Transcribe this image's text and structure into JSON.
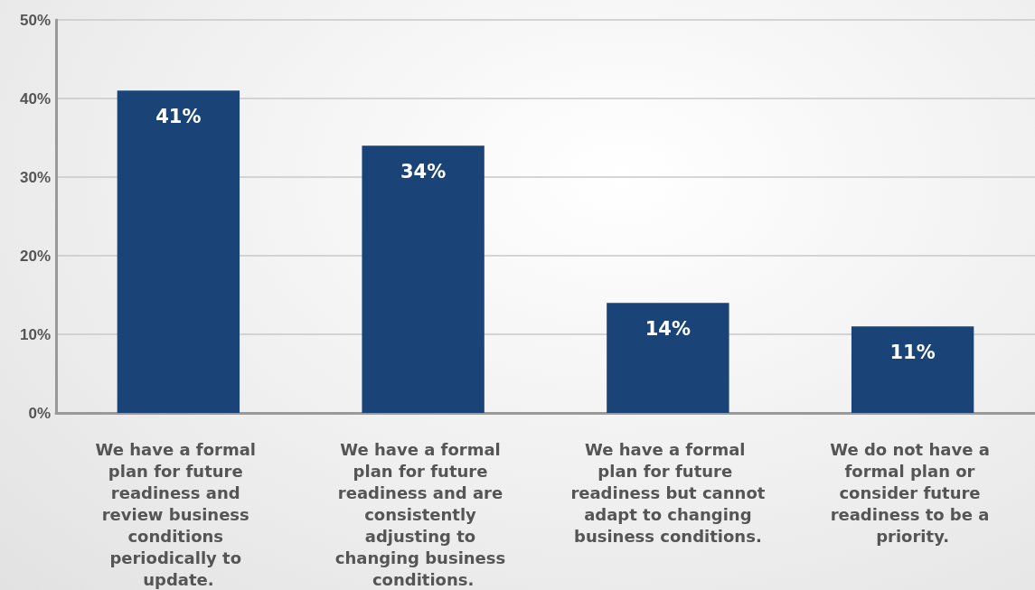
{
  "chart_data": {
    "type": "bar",
    "categories": [
      "We have a formal plan for future readiness and review business conditions periodically to update.",
      "We have a formal plan for future readiness and are consistently adjusting to changing business conditions.",
      "We have a formal plan for future readiness but cannot adapt to changing business conditions.",
      "We do not have a formal plan or consider future readiness to be a priority."
    ],
    "values": [
      41,
      34,
      14,
      11
    ],
    "value_labels": [
      "41%",
      "34%",
      "14%",
      "11%"
    ],
    "color": "#1a4478",
    "ylim": [
      0,
      50
    ],
    "yticks": [
      {
        "value": 0,
        "label": "0%"
      },
      {
        "value": 10,
        "label": "10%"
      },
      {
        "value": 20,
        "label": "20%"
      },
      {
        "value": 30,
        "label": "30%"
      },
      {
        "value": 40,
        "label": "40%"
      },
      {
        "value": 50,
        "label": "50%"
      }
    ],
    "grid": "y"
  }
}
